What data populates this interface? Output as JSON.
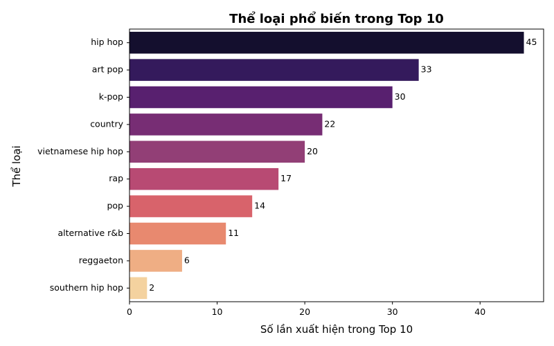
{
  "chart_data": {
    "type": "bar",
    "orientation": "horizontal",
    "title": "Thể loại phổ biến trong Top 10",
    "xlabel": "Số lần xuất hiện trong Top 10",
    "ylabel": "Thể loại",
    "categories": [
      "hip hop",
      "art pop",
      "k-pop",
      "country",
      "vietnamese hip hop",
      "rap",
      "pop",
      "alternative r&b",
      "reggaeton",
      "southern hip hop"
    ],
    "values": [
      45,
      33,
      30,
      22,
      20,
      17,
      14,
      11,
      6,
      2
    ],
    "colors": [
      "#140f2e",
      "#341a5c",
      "#58206f",
      "#772d74",
      "#923f76",
      "#b84a73",
      "#d8636b",
      "#e8896f",
      "#efae84",
      "#f4d29f"
    ],
    "xlim": [
      0,
      47.25
    ],
    "xticks": [
      0,
      10,
      20,
      30,
      40
    ],
    "grid": false,
    "legend": "none"
  }
}
